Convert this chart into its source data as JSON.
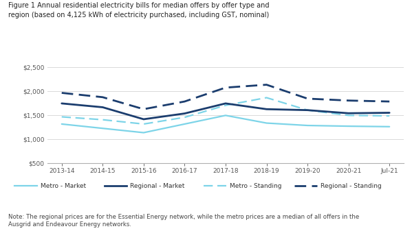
{
  "title": "Figure 1 Annual residential electricity bills for median offers by offer type and\nregion (based on 4,125 kWh of electricity purchased, including GST, nominal)",
  "note": "Note: The regional prices are for the Essential Energy network, while the metro prices are a median of all offers in the\nAusgrid and Endeavour Energy networks.",
  "x_labels": [
    "2013-14",
    "2014-15",
    "2015-16",
    "2016-17",
    "2017-18",
    "2018-19",
    "2019-20",
    "2020-21",
    "Jul-21"
  ],
  "metro_market": [
    1310,
    1220,
    1130,
    1310,
    1490,
    1330,
    1280,
    1265,
    1255
  ],
  "regional_market": [
    1740,
    1660,
    1410,
    1530,
    1740,
    1620,
    1600,
    1535,
    1545
  ],
  "metro_standing": [
    1460,
    1400,
    1310,
    1450,
    1700,
    1860,
    1600,
    1490,
    1480
  ],
  "regional_standing": [
    1960,
    1870,
    1620,
    1780,
    2070,
    2130,
    1840,
    1800,
    1780
  ],
  "ylim": [
    500,
    2500
  ],
  "yticks": [
    500,
    1000,
    1500,
    2000,
    2500
  ],
  "color_metro_market": "#7dd4e8",
  "color_regional_market": "#1b3d6e",
  "bg_color": "#ffffff",
  "grid_color": "#d9d9d9",
  "legend_labels": [
    "Metro - Market",
    "Regional - Market",
    "Metro - Standing",
    "Regional - Standing"
  ]
}
